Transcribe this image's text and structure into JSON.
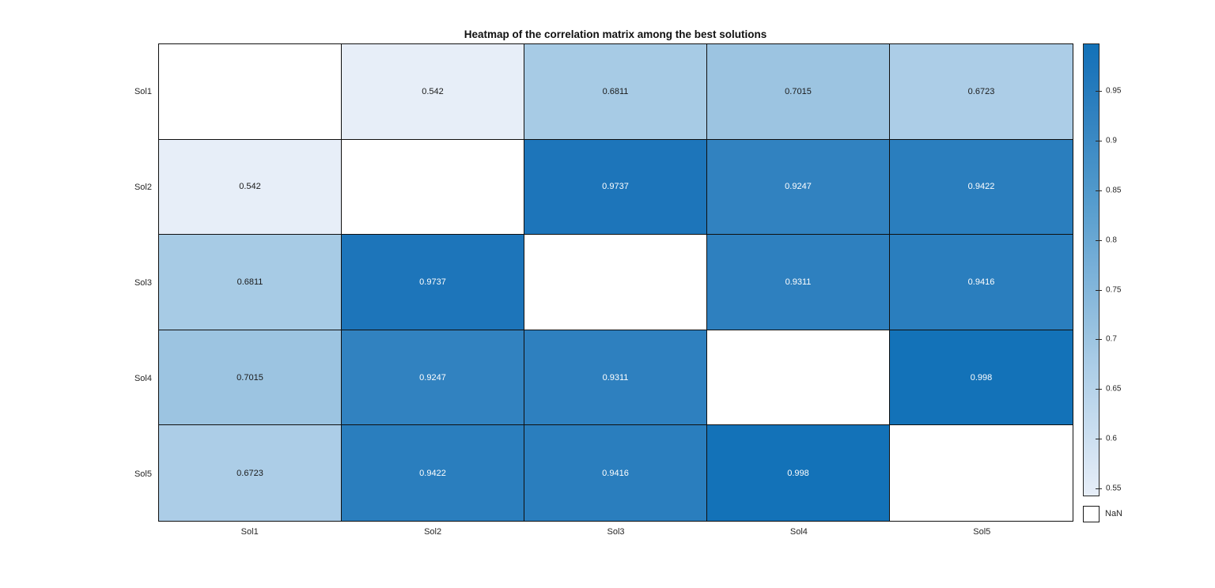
{
  "chart_data": {
    "type": "heatmap",
    "title": "Heatmap of the correlation matrix among the best solutions",
    "row_labels": [
      "Sol1",
      "Sol2",
      "Sol3",
      "Sol4",
      "Sol5"
    ],
    "col_labels": [
      "Sol1",
      "Sol2",
      "Sol3",
      "Sol4",
      "Sol5"
    ],
    "matrix": [
      [
        null,
        0.542,
        0.6811,
        0.7015,
        0.6723
      ],
      [
        0.542,
        null,
        0.9737,
        0.9247,
        0.9422
      ],
      [
        0.6811,
        0.9737,
        null,
        0.9311,
        0.9416
      ],
      [
        0.7015,
        0.9247,
        0.9311,
        null,
        0.998
      ],
      [
        0.6723,
        0.9422,
        0.9416,
        0.998,
        null
      ]
    ],
    "nan_label": "NaN",
    "colorbar": {
      "min": 0.542,
      "max": 0.998,
      "tick_values": [
        0.95,
        0.9,
        0.85,
        0.8,
        0.75,
        0.7,
        0.65,
        0.6,
        0.55
      ],
      "tick_labels": [
        "0.95",
        "0.9",
        "0.85",
        "0.8",
        "0.75",
        "0.7",
        "0.65",
        "0.6",
        "0.55"
      ],
      "legend_position": "right"
    },
    "grid": true,
    "colors": {
      "colormap_stops": [
        [
          0,
          "#e7eef8"
        ],
        [
          0.29,
          "#abcde7"
        ],
        [
          0.35,
          "#9cc4e1"
        ],
        [
          0.5,
          "#79b0d8"
        ],
        [
          0.65,
          "#559ccd"
        ],
        [
          0.84,
          "#3182c0"
        ],
        [
          0.95,
          "#1c75ba"
        ],
        [
          1,
          "#1372b8"
        ]
      ],
      "nan_color": "#ffffff",
      "grid_line": "#0f0f0f",
      "cell_text_dark": "#1a1a1a",
      "cell_text_light": "#ffffff",
      "label_color": "#262626",
      "title_color": "#111111"
    }
  }
}
